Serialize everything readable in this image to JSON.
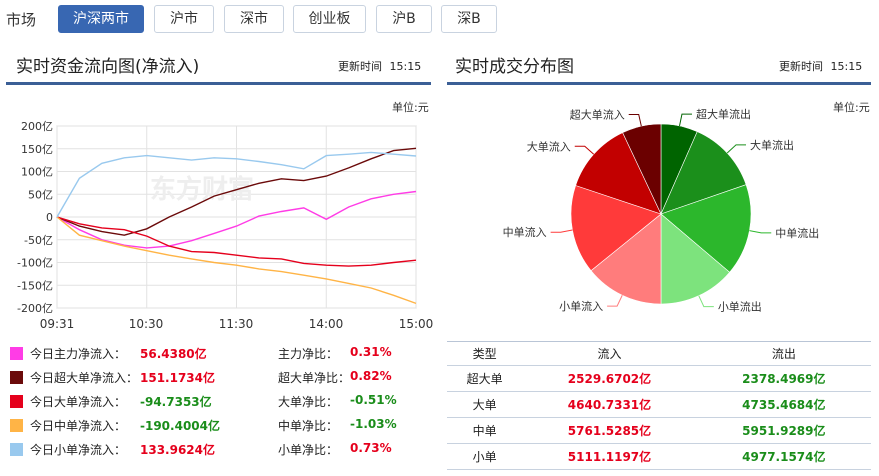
{
  "market": {
    "label": "市场",
    "buttons": [
      "沪深两市",
      "沪市",
      "深市",
      "创业板",
      "沪B",
      "深B"
    ],
    "active": "沪深两市"
  },
  "left": {
    "title": "实时资金流向图(净流入)",
    "update_label": "更新时间",
    "update_time": "15:15",
    "unit": "单位:元",
    "watermark": "东方财富",
    "y_ticks": [
      "200亿",
      "150亿",
      "100亿",
      "50亿",
      "0",
      "-50亿",
      "-100亿",
      "-150亿",
      "-200亿"
    ],
    "x_ticks": [
      "09:31",
      "10:30",
      "11:30",
      "14:00",
      "15:00"
    ]
  },
  "chart_data": {
    "type": "line",
    "x_ticks": [
      "09:31",
      "10:30",
      "11:30",
      "14:00",
      "15:00"
    ],
    "ylabel": "亿",
    "ylim": [
      -200,
      200
    ],
    "grid": true,
    "series": [
      {
        "name": "今日主力净流入",
        "color": "#ff3ce6",
        "values": [
          0,
          -28,
          -50,
          -62,
          -68,
          -64,
          -52,
          -36,
          -20,
          2,
          12,
          20,
          -5,
          22,
          40,
          50,
          56
        ]
      },
      {
        "name": "今日超大单净流入",
        "color": "#6b0a0a",
        "values": [
          0,
          -20,
          -32,
          -40,
          -26,
          0,
          22,
          46,
          60,
          74,
          84,
          80,
          90,
          108,
          128,
          146,
          151
        ]
      },
      {
        "name": "今日大单净流入",
        "color": "#e5001c",
        "values": [
          0,
          -15,
          -24,
          -28,
          -42,
          -64,
          -76,
          -78,
          -84,
          -90,
          -92,
          -102,
          -106,
          -108,
          -106,
          -100,
          -95
        ]
      },
      {
        "name": "今日中单净流入",
        "color": "#ffb446",
        "values": [
          0,
          -40,
          -52,
          -64,
          -74,
          -84,
          -92,
          -100,
          -106,
          -114,
          -120,
          -128,
          -136,
          -146,
          -156,
          -172,
          -190
        ]
      },
      {
        "name": "今日小单净流入",
        "color": "#99c9ee",
        "values": [
          0,
          85,
          118,
          130,
          135,
          130,
          125,
          130,
          128,
          122,
          115,
          106,
          135,
          138,
          142,
          138,
          134
        ]
      }
    ]
  },
  "legend": [
    {
      "label": "今日主力净流入：",
      "value": "56.4380亿",
      "color": "#ff3ce6",
      "ratio_label": "主力净比：",
      "ratio": "0.31%",
      "v_sign": "red",
      "r_sign": "red"
    },
    {
      "label": "今日超大单净流入：",
      "value": "151.1734亿",
      "color": "#6b0a0a",
      "ratio_label": "超大单净比：",
      "ratio": "0.82%",
      "v_sign": "red",
      "r_sign": "red"
    },
    {
      "label": "今日大单净流入：",
      "value": "-94.7353亿",
      "color": "#e5001c",
      "ratio_label": "大单净比：",
      "ratio": "-0.51%",
      "v_sign": "green",
      "r_sign": "green"
    },
    {
      "label": "今日中单净流入：",
      "value": "-190.4004亿",
      "color": "#ffb446",
      "ratio_label": "中单净比：",
      "ratio": "-1.03%",
      "v_sign": "green",
      "r_sign": "green"
    },
    {
      "label": "今日小单净流入：",
      "value": "133.9624亿",
      "color": "#99c9ee",
      "ratio_label": "小单净比：",
      "ratio": "0.73%",
      "v_sign": "red",
      "r_sign": "red"
    }
  ],
  "right": {
    "title": "实时成交分布图",
    "update_label": "更新时间",
    "update_time": "15:15",
    "unit": "单位:元"
  },
  "pie": {
    "type": "pie",
    "slices": [
      {
        "label": "超大单流出",
        "value": 2378.4969,
        "color": "#006400"
      },
      {
        "label": "大单流出",
        "value": 4735.4684,
        "color": "#1b8f1b"
      },
      {
        "label": "中单流出",
        "value": 5951.9289,
        "color": "#2cb72c"
      },
      {
        "label": "小单流出",
        "value": 4977.1574,
        "color": "#7de37d"
      },
      {
        "label": "小单流入",
        "value": 5111.1197,
        "color": "#ff7c7c"
      },
      {
        "label": "中单流入",
        "value": 5761.5285,
        "color": "#ff3a3a"
      },
      {
        "label": "大单流入",
        "value": 4640.7331,
        "color": "#c20000"
      },
      {
        "label": "超大单流入",
        "value": 2529.6702,
        "color": "#6b0000"
      }
    ]
  },
  "table": {
    "headers": [
      "类型",
      "流入",
      "流出"
    ],
    "rows": [
      {
        "type": "超大单",
        "in": "2529.6702亿",
        "out": "2378.4969亿"
      },
      {
        "type": "大单",
        "in": "4640.7331亿",
        "out": "4735.4684亿"
      },
      {
        "type": "中单",
        "in": "5761.5285亿",
        "out": "5951.9289亿"
      },
      {
        "type": "小单",
        "in": "5111.1197亿",
        "out": "4977.1574亿"
      }
    ]
  }
}
